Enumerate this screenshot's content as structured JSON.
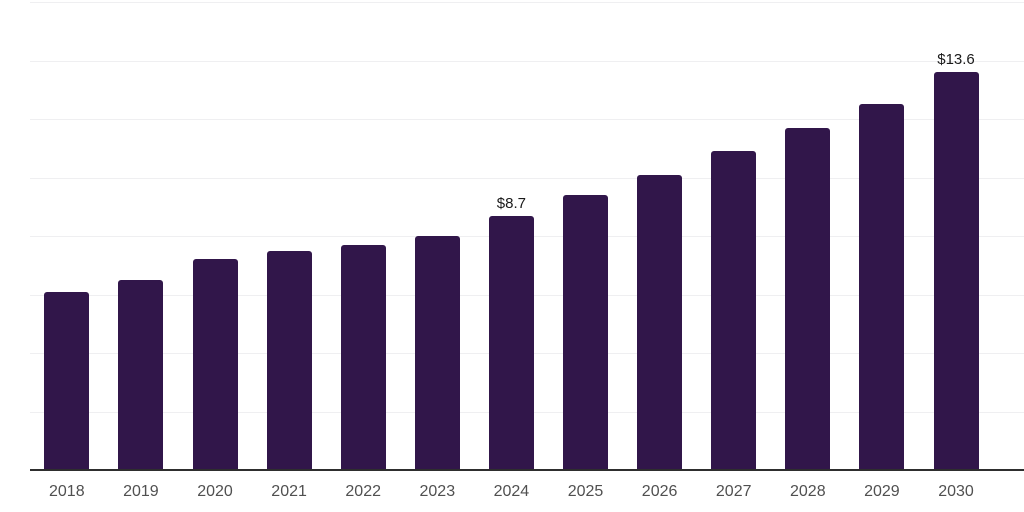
{
  "chart_data": {
    "type": "bar",
    "title": "",
    "xlabel": "",
    "ylabel": "",
    "categories": [
      "2018",
      "2019",
      "2020",
      "2021",
      "2022",
      "2023",
      "2024",
      "2025",
      "2026",
      "2027",
      "2028",
      "2029",
      "2030"
    ],
    "values": [
      6.1,
      6.5,
      7.2,
      7.5,
      7.7,
      8.0,
      8.7,
      9.4,
      10.1,
      10.9,
      11.7,
      12.5,
      13.6
    ],
    "point_labels": [
      "",
      "",
      "",
      "",
      "",
      "",
      "$8.7",
      "",
      "",
      "",
      "",
      "",
      "$13.6"
    ],
    "ylim": [
      0,
      16
    ],
    "gridline_step": 2,
    "grid": "horizontal-only",
    "y_tick_labels_visible": false,
    "legend": "none"
  },
  "colors": {
    "background": "#ffffff",
    "bar_fill": "#31164a",
    "gridline": "#efeff1",
    "axis_line": "#2e2e2e",
    "x_tick_text": "#505050",
    "value_label_text": "#1a1a1a"
  }
}
